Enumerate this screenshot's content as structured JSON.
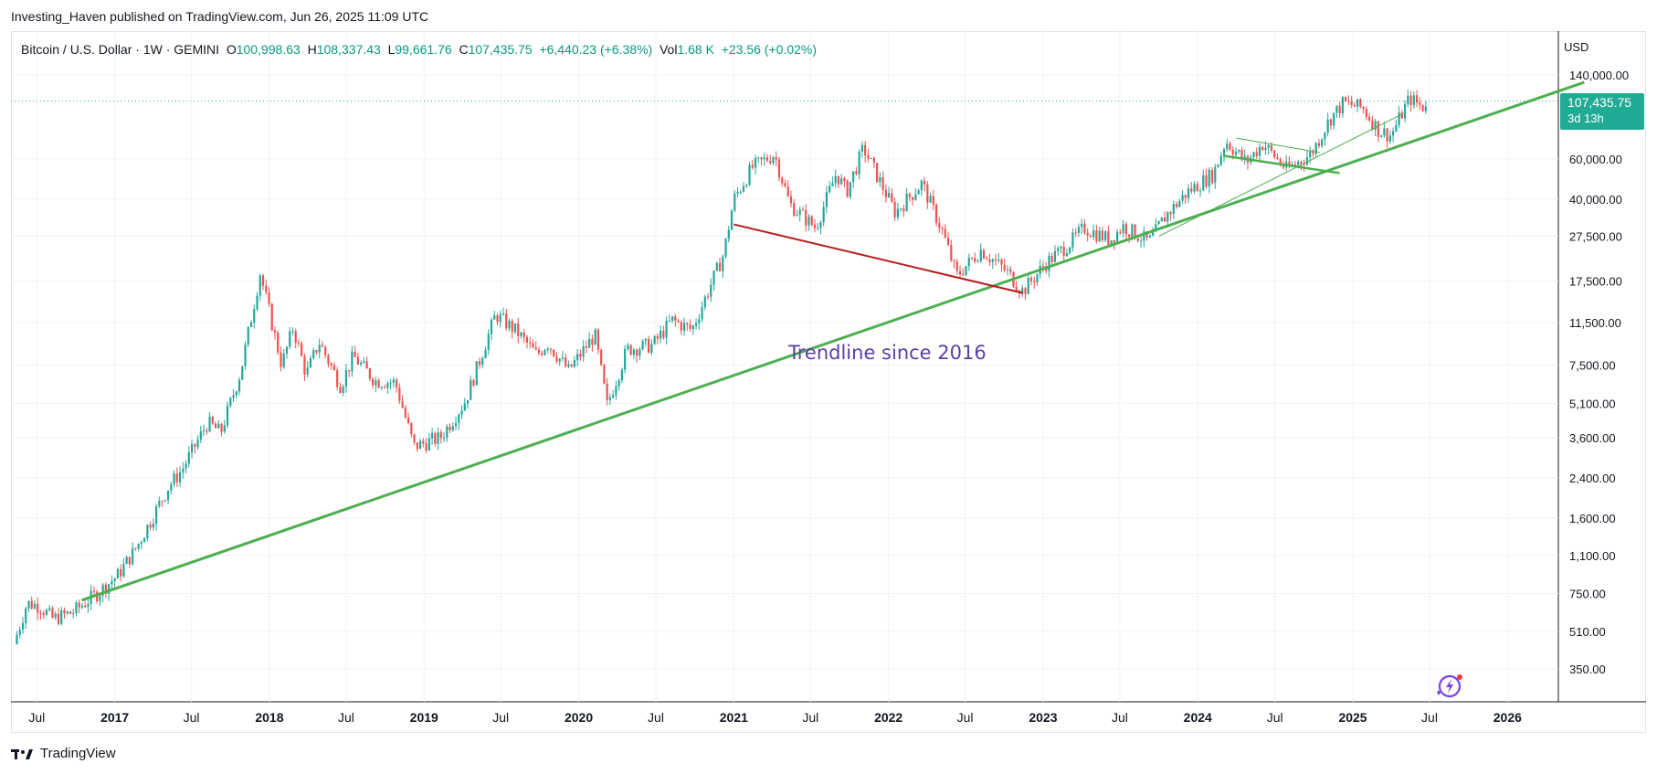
{
  "header": {
    "published_text": "Investing_Haven published on TradingView.com, Jun 26, 2025 11:09 UTC"
  },
  "legend": {
    "symbol": "Bitcoin / U.S. Dollar · 1W · GEMINI",
    "open_label": "O",
    "open": "100,998.63",
    "high_label": "H",
    "high": "108,337.43",
    "low_label": "L",
    "low": "99,661.76",
    "close_label": "C",
    "close": "107,435.75",
    "change": "+6,440.23 (+6.38%)",
    "vol_label": "Vol",
    "vol": "1.68 K",
    "vol_change": "+23.56 (+0.02%)"
  },
  "price_axis": {
    "currency": "USD",
    "ticks": [
      "140,000.00",
      "60,000.00",
      "40,000.00",
      "27,500.00",
      "17,500.00",
      "11,500.00",
      "7,500.00",
      "5,100.00",
      "3,600.00",
      "2,400.00",
      "1,600.00",
      "1,100.00",
      "750.00",
      "510.00",
      "350.00"
    ],
    "last_price": "107,435.75",
    "countdown": "3d 13h"
  },
  "annotation": {
    "text": "Trendline since 2016"
  },
  "footer": {
    "brand": "TradingView"
  },
  "colors": {
    "up": "#26a69a",
    "down": "#ef5350",
    "trendline": "#4caf50",
    "red_trendline": "#b71c1c",
    "badge": "#22ab94",
    "annotation": "#5b3fa6",
    "grid": "#f0f3fa"
  },
  "chart_data": {
    "type": "candlestick",
    "title": "Bitcoin / U.S. Dollar · 1W · GEMINI",
    "y_scale": "log",
    "ylim": [
      250,
      200000
    ],
    "x_tick_labels": [
      "Jul",
      "2017",
      "Jul",
      "2018",
      "Jul",
      "2019",
      "Jul",
      "2020",
      "Jul",
      "2021",
      "Jul",
      "2022",
      "Jul",
      "2023",
      "Jul",
      "2024",
      "Jul",
      "2025",
      "Jul",
      "2026"
    ],
    "x_tick_dates": [
      "2016-07",
      "2017-01",
      "2017-07",
      "2018-01",
      "2018-07",
      "2019-01",
      "2019-07",
      "2020-01",
      "2020-07",
      "2021-01",
      "2021-07",
      "2022-01",
      "2022-07",
      "2023-01",
      "2023-07",
      "2024-01",
      "2024-07",
      "2025-01",
      "2025-07",
      "2026-01"
    ],
    "price_path": [
      [
        "2016-05-15",
        450
      ],
      [
        "2016-06-15",
        680
      ],
      [
        "2016-07-15",
        660
      ],
      [
        "2016-08-15",
        580
      ],
      [
        "2016-10-01",
        620
      ],
      [
        "2016-12-01",
        760
      ],
      [
        "2017-01-15",
        900
      ],
      [
        "2017-03-01",
        1200
      ],
      [
        "2017-05-15",
        2200
      ],
      [
        "2017-06-15",
        2600
      ],
      [
        "2017-08-15",
        4200
      ],
      [
        "2017-09-15",
        3800
      ],
      [
        "2017-11-01",
        7000
      ],
      [
        "2017-12-17",
        19000
      ],
      [
        "2018-02-06",
        7500
      ],
      [
        "2018-03-05",
        11000
      ],
      [
        "2018-04-05",
        6800
      ],
      [
        "2018-05-05",
        9500
      ],
      [
        "2018-06-25",
        6100
      ],
      [
        "2018-07-25",
        8200
      ],
      [
        "2018-09-15",
        6400
      ],
      [
        "2018-11-01",
        6300
      ],
      [
        "2018-12-15",
        3300
      ],
      [
        "2019-02-15",
        3600
      ],
      [
        "2019-04-15",
        5200
      ],
      [
        "2019-06-26",
        12500
      ],
      [
        "2019-08-15",
        10500
      ],
      [
        "2019-10-01",
        8300
      ],
      [
        "2019-10-26",
        9400
      ],
      [
        "2019-12-15",
        7100
      ],
      [
        "2020-02-15",
        10200
      ],
      [
        "2020-03-15",
        5000
      ],
      [
        "2020-05-01",
        8800
      ],
      [
        "2020-07-01",
        9200
      ],
      [
        "2020-08-15",
        11800
      ],
      [
        "2020-10-01",
        10700
      ],
      [
        "2020-12-15",
        23000
      ],
      [
        "2021-01-08",
        40000
      ],
      [
        "2021-02-20",
        55000
      ],
      [
        "2021-04-14",
        63000
      ],
      [
        "2021-05-20",
        38000
      ],
      [
        "2021-07-20",
        30000
      ],
      [
        "2021-09-07",
        52000
      ],
      [
        "2021-10-01",
        43000
      ],
      [
        "2021-11-10",
        67000
      ],
      [
        "2022-01-24",
        35000
      ],
      [
        "2022-03-28",
        47000
      ],
      [
        "2022-05-15",
        29000
      ],
      [
        "2022-06-18",
        18500
      ],
      [
        "2022-08-15",
        24000
      ],
      [
        "2022-10-15",
        19200
      ],
      [
        "2022-11-21",
        15800
      ],
      [
        "2023-01-15",
        21000
      ],
      [
        "2023-03-15",
        26000
      ],
      [
        "2023-04-15",
        30000
      ],
      [
        "2023-06-15",
        26500
      ],
      [
        "2023-07-15",
        30500
      ],
      [
        "2023-09-15",
        26000
      ],
      [
        "2023-10-25",
        34000
      ],
      [
        "2023-12-15",
        43000
      ],
      [
        "2024-02-15",
        52000
      ],
      [
        "2024-03-14",
        72000
      ],
      [
        "2024-05-01",
        58000
      ],
      [
        "2024-06-10",
        70000
      ],
      [
        "2024-08-05",
        54000
      ],
      [
        "2024-10-01",
        63000
      ],
      [
        "2024-11-15",
        90000
      ],
      [
        "2024-12-17",
        106000
      ],
      [
        "2025-02-01",
        100000
      ],
      [
        "2025-03-10",
        80000
      ],
      [
        "2025-04-08",
        76000
      ],
      [
        "2025-05-22",
        111000
      ],
      [
        "2025-06-22",
        101000
      ],
      [
        "2025-06-26",
        107435.75
      ]
    ],
    "drawings": [
      {
        "name": "Trendline since 2016",
        "color": "#4caf50",
        "from": [
          "2016-10-15",
          700
        ],
        "to": [
          "2026-07-01",
          130000
        ]
      },
      {
        "name": "",
        "color": "#b71c1c",
        "from": [
          "2021-01-01",
          31000
        ],
        "to": [
          "2022-11-15",
          15500
        ]
      }
    ]
  }
}
